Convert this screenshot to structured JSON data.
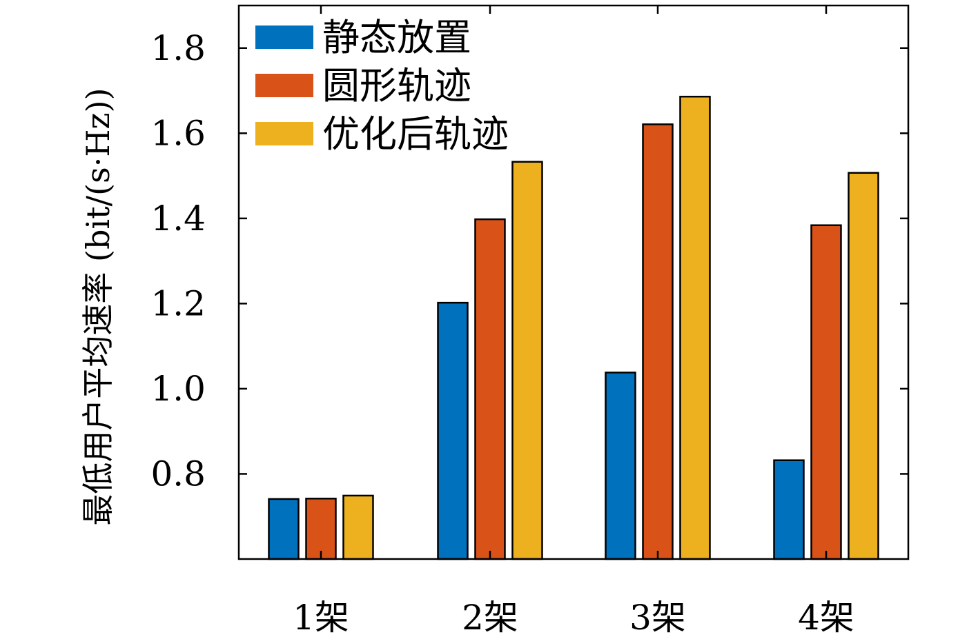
{
  "chart_data": {
    "type": "bar",
    "title": "",
    "xlabel": "",
    "ylabel": "最低用户平均速率 (bit/(s·Hz))",
    "ylim": [
      0.6,
      1.9
    ],
    "yticks": [
      "0.8",
      "1.0",
      "1.2",
      "1.4",
      "1.6",
      "1.8"
    ],
    "ytick_values": [
      0.8,
      1.0,
      1.2,
      1.4,
      1.6,
      1.8
    ],
    "categories": [
      "1架",
      "2架",
      "3架",
      "4架"
    ],
    "series": [
      {
        "name": "静态放置",
        "color": "#0072BD",
        "values": [
          0.741,
          1.202,
          1.038,
          0.832
        ]
      },
      {
        "name": "圆形轨迹",
        "color": "#D95319",
        "values": [
          0.742,
          1.398,
          1.621,
          1.384
        ]
      },
      {
        "name": "优化后轨迹",
        "color": "#EDB120",
        "values": [
          0.749,
          1.533,
          1.686,
          1.507
        ]
      }
    ],
    "legend_position": "top-left",
    "grid": false
  }
}
